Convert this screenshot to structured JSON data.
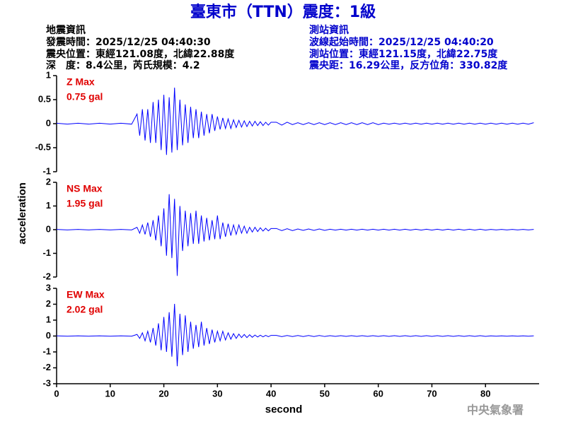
{
  "header": {
    "title": "臺東市（TTN）震度：1級",
    "left": [
      "地震資訊",
      "發震時間：2025/12/25 04:40:30",
      "震央位置：東經121.08度，北緯22.88度",
      "深　度：8.4公里，芮氏規模：4.2"
    ],
    "right": [
      "測站資訊",
      "波線起始時間：2025/12/25 04:40:20",
      "測站位置：東經121.15度，北緯22.75度",
      "震央距：16.29公里，反方位角：330.82度"
    ],
    "footer": "中央氣象署"
  },
  "chart_data": [
    {
      "type": "line",
      "max_label": "Z Max",
      "max_text": "0.75 gal",
      "color": "#0000ff",
      "xlim": [
        0,
        90
      ],
      "ylim": [
        -1,
        1
      ],
      "yticks": [
        -1,
        -0.5,
        0,
        0.5,
        1
      ],
      "x": [
        0,
        2,
        4,
        6,
        8,
        10,
        12,
        14,
        15,
        15.5,
        16,
        16.5,
        17,
        17.5,
        18,
        18.5,
        19,
        19.5,
        20,
        20.5,
        21,
        21.5,
        22,
        22.5,
        23,
        23.5,
        24,
        24.5,
        25,
        25.5,
        26,
        26.5,
        27,
        27.5,
        28,
        28.5,
        29,
        29.5,
        30,
        30.5,
        31,
        31.5,
        32,
        32.5,
        33,
        33.5,
        34,
        34.5,
        35,
        35.5,
        36,
        36.5,
        37,
        37.5,
        38,
        38.5,
        39,
        39.5,
        40,
        41,
        42,
        43,
        44,
        45,
        46,
        47,
        48,
        49,
        50,
        51,
        52,
        53,
        54,
        55,
        56,
        57,
        58,
        59,
        60,
        61,
        62,
        63,
        64,
        65,
        66,
        67,
        68,
        69,
        70,
        71,
        72,
        73,
        74,
        75,
        76,
        77,
        78,
        79,
        80,
        81,
        82,
        83,
        84,
        85,
        86,
        87,
        88,
        89
      ],
      "values": [
        0.01,
        -0.01,
        0.01,
        -0.01,
        0.01,
        -0.01,
        0.01,
        -0.01,
        0.2,
        -0.25,
        0.3,
        -0.35,
        0.3,
        -0.4,
        0.45,
        -0.4,
        0.5,
        -0.55,
        0.6,
        -0.65,
        0.55,
        -0.6,
        0.75,
        -0.55,
        0.5,
        -0.45,
        0.4,
        -0.4,
        0.35,
        -0.3,
        0.3,
        -0.3,
        0.25,
        -0.25,
        0.2,
        -0.2,
        0.2,
        -0.15,
        0.15,
        -0.12,
        0.12,
        -0.1,
        0.1,
        -0.1,
        0.08,
        -0.08,
        0.07,
        -0.07,
        0.06,
        -0.06,
        0.05,
        -0.05,
        0.05,
        -0.04,
        0.04,
        -0.04,
        0.03,
        -0.03,
        0.03,
        0.03,
        -0.03,
        0.03,
        -0.02,
        0.02,
        -0.02,
        0.02,
        -0.02,
        0.02,
        -0.02,
        0.02,
        -0.02,
        0.02,
        -0.02,
        0.02,
        -0.02,
        0.02,
        -0.02,
        0.02,
        -0.02,
        0.01,
        -0.01,
        0.01,
        -0.01,
        0.01,
        -0.01,
        0.01,
        -0.01,
        0.01,
        -0.01,
        0.01,
        -0.01,
        0.01,
        -0.01,
        0.01,
        -0.01,
        0.01,
        -0.01,
        0.01,
        -0.01,
        0.01,
        -0.01,
        0.01,
        -0.01,
        0.01,
        -0.01,
        0.01,
        -0.01,
        0.02
      ]
    },
    {
      "type": "line",
      "max_label": "NS Max",
      "max_text": "1.95 gal",
      "ylabel": "acceleration",
      "color": "#0000ff",
      "xlim": [
        0,
        90
      ],
      "ylim": [
        -2,
        2
      ],
      "yticks": [
        -2,
        -1,
        0,
        1,
        2
      ],
      "x": [
        0,
        2,
        4,
        6,
        8,
        10,
        12,
        14,
        15,
        15.5,
        16,
        16.5,
        17,
        17.5,
        18,
        18.5,
        19,
        19.5,
        20,
        20.5,
        21,
        21.5,
        22,
        22.5,
        23,
        23.5,
        24,
        24.5,
        25,
        25.5,
        26,
        26.5,
        27,
        27.5,
        28,
        28.5,
        29,
        29.5,
        30,
        30.5,
        31,
        31.5,
        32,
        32.5,
        33,
        33.5,
        34,
        34.5,
        35,
        35.5,
        36,
        36.5,
        37,
        37.5,
        38,
        38.5,
        39,
        39.5,
        40,
        41,
        42,
        43,
        44,
        45,
        46,
        47,
        48,
        49,
        50,
        51,
        52,
        53,
        54,
        55,
        56,
        57,
        58,
        59,
        60,
        61,
        62,
        63,
        64,
        65,
        66,
        67,
        68,
        69,
        70,
        71,
        72,
        73,
        74,
        75,
        76,
        77,
        78,
        79,
        80,
        81,
        82,
        83,
        84,
        85,
        86,
        87,
        88,
        89
      ],
      "values": [
        0.01,
        -0.01,
        0.01,
        -0.01,
        0.01,
        -0.01,
        0.01,
        -0.01,
        0.1,
        -0.15,
        0.2,
        -0.2,
        0.3,
        -0.3,
        0.4,
        -0.45,
        0.6,
        -0.7,
        0.9,
        -1.1,
        1.5,
        -1.2,
        1.3,
        -1.95,
        1.0,
        -0.9,
        0.8,
        -0.7,
        0.7,
        -0.6,
        0.8,
        -0.6,
        0.6,
        -0.5,
        0.5,
        -0.45,
        0.4,
        -0.4,
        0.6,
        -0.4,
        0.3,
        -0.3,
        0.25,
        -0.25,
        0.2,
        -0.2,
        0.2,
        -0.15,
        0.15,
        -0.15,
        0.1,
        -0.1,
        0.1,
        -0.08,
        0.08,
        -0.06,
        0.06,
        -0.05,
        0.05,
        0.05,
        -0.04,
        0.04,
        -0.04,
        0.03,
        -0.03,
        0.03,
        -0.03,
        0.03,
        -0.03,
        0.02,
        -0.02,
        0.02,
        -0.02,
        0.02,
        -0.02,
        0.02,
        -0.02,
        0.02,
        -0.02,
        0.02,
        -0.02,
        0.02,
        -0.02,
        0.02,
        -0.02,
        0.02,
        -0.02,
        0.02,
        -0.02,
        0.02,
        -0.02,
        0.02,
        -0.02,
        0.02,
        -0.02,
        0.02,
        -0.02,
        0.02,
        -0.02,
        0.01,
        -0.01,
        0.01,
        -0.01,
        0.01,
        -0.01,
        0.01,
        -0.01,
        0.01
      ]
    },
    {
      "type": "line",
      "max_label": "EW Max",
      "max_text": "2.02 gal",
      "xlabel": "second",
      "color": "#0000ff",
      "xlim": [
        0,
        90
      ],
      "ylim": [
        -3,
        3
      ],
      "yticks": [
        -3,
        -2,
        -1,
        0,
        1,
        2,
        3
      ],
      "xticks": [
        0,
        10,
        20,
        30,
        40,
        50,
        60,
        70,
        80
      ],
      "x": [
        0,
        2,
        4,
        6,
        8,
        10,
        12,
        14,
        15,
        15.5,
        16,
        16.5,
        17,
        17.5,
        18,
        18.5,
        19,
        19.5,
        20,
        20.5,
        21,
        21.5,
        22,
        22.5,
        23,
        23.5,
        24,
        24.5,
        25,
        25.5,
        26,
        26.5,
        27,
        27.5,
        28,
        28.5,
        29,
        29.5,
        30,
        30.5,
        31,
        31.5,
        32,
        32.5,
        33,
        33.5,
        34,
        34.5,
        35,
        35.5,
        36,
        36.5,
        37,
        37.5,
        38,
        38.5,
        39,
        39.5,
        40,
        41,
        42,
        43,
        44,
        45,
        46,
        47,
        48,
        49,
        50,
        51,
        52,
        53,
        54,
        55,
        56,
        57,
        58,
        59,
        60,
        61,
        62,
        63,
        64,
        65,
        66,
        67,
        68,
        69,
        70,
        71,
        72,
        73,
        74,
        75,
        76,
        77,
        78,
        79,
        80,
        81,
        82,
        83,
        84,
        85,
        86,
        87,
        88,
        89
      ],
      "values": [
        0.01,
        -0.01,
        0.01,
        -0.01,
        0.01,
        -0.01,
        0.01,
        -0.01,
        0.1,
        -0.15,
        0.2,
        -0.3,
        0.3,
        -0.4,
        0.5,
        -0.6,
        0.8,
        -0.9,
        1.2,
        -1.0,
        1.5,
        -1.3,
        2.02,
        -1.9,
        1.4,
        -1.2,
        1.3,
        -1.0,
        0.9,
        -0.8,
        0.7,
        -0.7,
        0.9,
        -0.6,
        0.5,
        -0.5,
        0.4,
        -0.4,
        0.3,
        -0.3,
        0.3,
        -0.25,
        0.2,
        -0.2,
        0.15,
        -0.15,
        0.12,
        -0.1,
        0.1,
        -0.1,
        0.08,
        -0.08,
        0.06,
        -0.06,
        0.05,
        -0.05,
        0.04,
        -0.04,
        0.04,
        0.04,
        -0.04,
        0.03,
        -0.03,
        0.03,
        -0.03,
        0.03,
        -0.03,
        0.03,
        -0.03,
        0.02,
        -0.02,
        0.02,
        -0.02,
        0.02,
        -0.02,
        0.02,
        -0.02,
        0.02,
        -0.02,
        0.02,
        -0.02,
        0.02,
        -0.02,
        0.02,
        -0.02,
        0.02,
        -0.02,
        0.02,
        -0.02,
        0.02,
        -0.02,
        0.02,
        -0.02,
        0.02,
        -0.02,
        0.02,
        -0.02,
        0.02,
        -0.02,
        0.01,
        -0.01,
        0.01,
        -0.01,
        0.01,
        -0.01,
        0.01,
        -0.01,
        0.01
      ]
    }
  ]
}
